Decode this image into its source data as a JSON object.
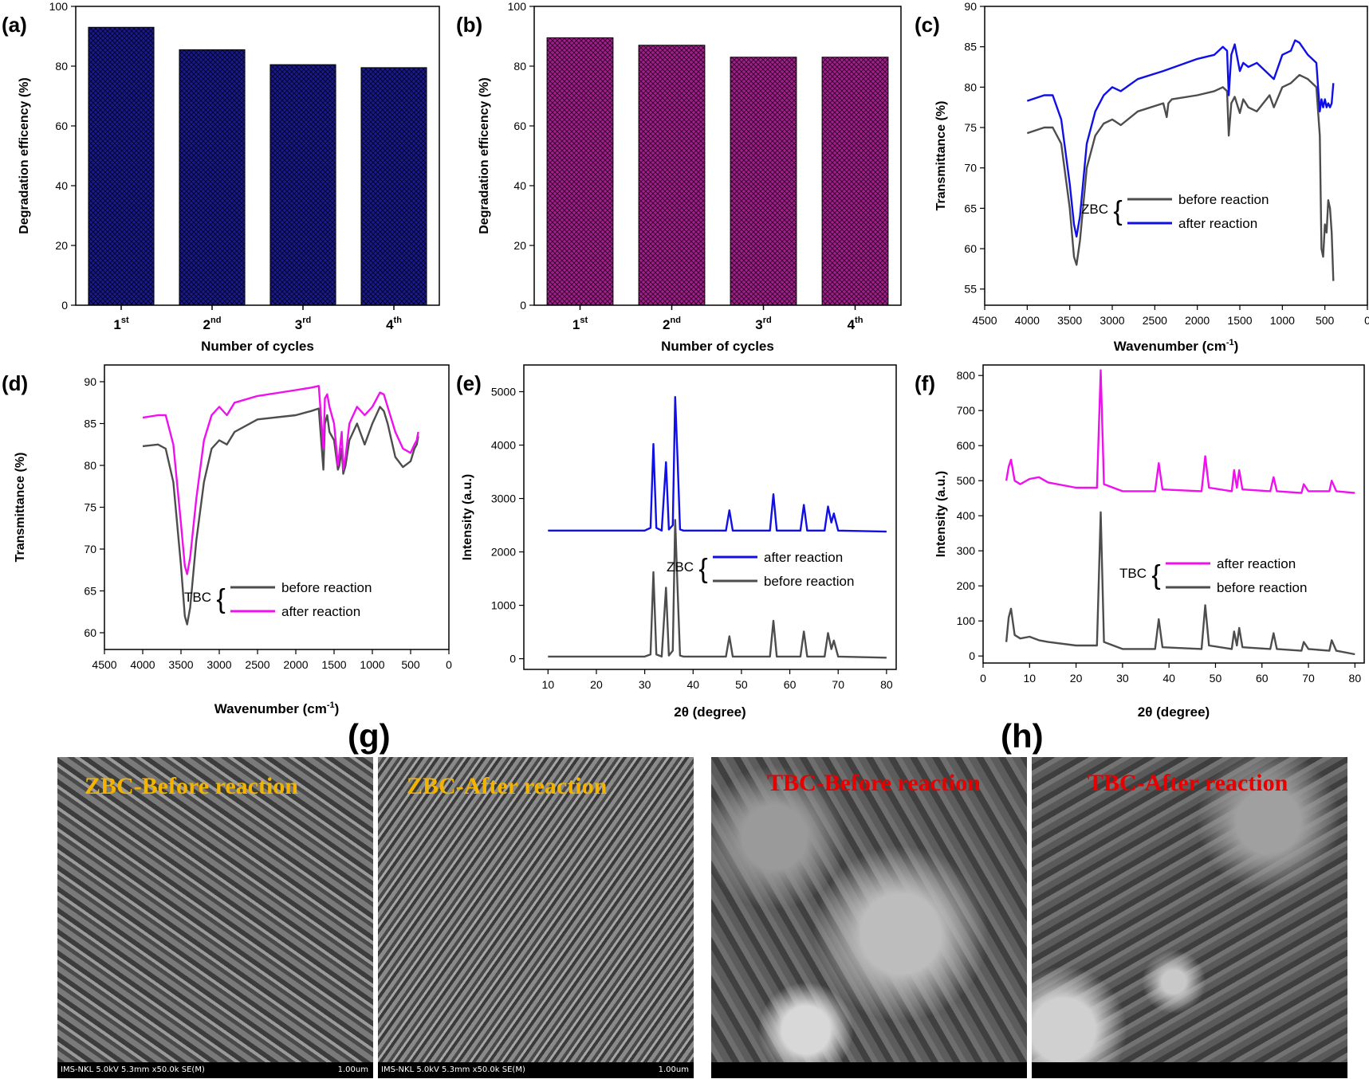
{
  "chart_data": [
    {
      "id": "a",
      "type": "bar",
      "panel_label": "(a)",
      "categories": [
        "1st",
        "2nd",
        "3rd",
        "4th"
      ],
      "values": [
        93,
        85.5,
        80.5,
        79.5
      ],
      "xlabel": "Number of cycles",
      "ylabel": "Degradation efficency (%)",
      "ylim": [
        0,
        100
      ],
      "yticks": [
        0,
        20,
        40,
        60,
        80,
        100
      ],
      "bar_color": "#1a1a8c",
      "pattern": "crosshatch"
    },
    {
      "id": "b",
      "type": "bar",
      "panel_label": "(b)",
      "categories": [
        "1st",
        "2nd",
        "3rd",
        "4th"
      ],
      "values": [
        89.5,
        87,
        83,
        83
      ],
      "xlabel": "Number of cycles",
      "ylabel": "Degradation efficency (%)",
      "ylim": [
        0,
        100
      ],
      "yticks": [
        0,
        20,
        40,
        60,
        80,
        100
      ],
      "bar_color": "#8c1a7a",
      "pattern": "crosshatch"
    },
    {
      "id": "c",
      "type": "line",
      "panel_label": "(c)",
      "xlabel": "Wavenumber (cm⁻¹)",
      "ylabel": "Transmittance (%)",
      "xlim": [
        4500,
        0
      ],
      "ylim": [
        53,
        90
      ],
      "xticks": [
        4500,
        4000,
        3500,
        3000,
        2500,
        2000,
        1500,
        1000,
        500,
        0
      ],
      "yticks": [
        55,
        60,
        65,
        70,
        75,
        80,
        85,
        90
      ],
      "legend": {
        "group": "ZBC",
        "position": "center-right"
      },
      "series": [
        {
          "name": "before reaction",
          "color": "#4d4d4d",
          "x": [
            4000,
            3800,
            3700,
            3600,
            3500,
            3450,
            3420,
            3380,
            3300,
            3200,
            3100,
            3000,
            2900,
            2700,
            2400,
            2360,
            2340,
            2300,
            2000,
            1800,
            1700,
            1650,
            1630,
            1600,
            1560,
            1500,
            1460,
            1400,
            1300,
            1150,
            1100,
            1000,
            900,
            800,
            700,
            600,
            560,
            540,
            520,
            500,
            480,
            460,
            440,
            420,
            400
          ],
          "y": [
            74.3,
            75,
            75,
            73,
            65,
            59,
            58,
            61,
            70,
            74,
            75.5,
            76,
            75.3,
            77,
            78,
            76.3,
            78,
            78.5,
            79,
            79.5,
            80,
            79.5,
            74,
            78,
            78.8,
            76.8,
            78.5,
            77.5,
            77,
            79,
            77.5,
            80,
            80.5,
            81.5,
            81,
            80,
            74,
            60,
            59,
            63,
            62,
            66,
            65,
            62,
            56
          ]
        },
        {
          "name": "after reaction",
          "color": "#1010e6",
          "x": [
            4000,
            3800,
            3700,
            3600,
            3500,
            3450,
            3420,
            3380,
            3300,
            3200,
            3100,
            3000,
            2900,
            2700,
            2400,
            2000,
            1800,
            1700,
            1650,
            1630,
            1600,
            1560,
            1500,
            1460,
            1400,
            1300,
            1150,
            1100,
            1000,
            900,
            850,
            800,
            700,
            600,
            560,
            540,
            520,
            500,
            480,
            460,
            440,
            420,
            400
          ],
          "y": [
            78.3,
            79,
            79,
            76,
            68,
            63,
            61.5,
            64,
            73,
            77,
            79,
            80,
            79.5,
            81,
            82,
            83.5,
            84,
            85,
            84.5,
            79,
            84,
            85.3,
            82,
            83,
            82.5,
            83,
            81.5,
            81,
            84,
            84.5,
            85.8,
            85.5,
            84,
            83,
            77,
            78.5,
            77.5,
            78.5,
            77.5,
            78,
            77.5,
            78,
            80.5
          ]
        }
      ]
    },
    {
      "id": "d",
      "type": "line",
      "panel_label": "(d)",
      "xlabel": "Wavenumber (cm⁻¹)",
      "ylabel": "Transmittance (%)",
      "xlim": [
        4500,
        0
      ],
      "ylim": [
        58,
        92
      ],
      "xticks": [
        4500,
        4000,
        3500,
        3000,
        2500,
        2000,
        1500,
        1000,
        500,
        0
      ],
      "yticks": [
        60,
        65,
        70,
        75,
        80,
        85,
        90
      ],
      "legend": {
        "group": "TBC",
        "position": "bottom-center"
      },
      "series": [
        {
          "name": "before reaction",
          "color": "#4d4d4d",
          "x": [
            4000,
            3800,
            3700,
            3600,
            3500,
            3450,
            3420,
            3380,
            3300,
            3200,
            3100,
            3000,
            2900,
            2800,
            2500,
            2000,
            1800,
            1700,
            1640,
            1620,
            1590,
            1560,
            1500,
            1450,
            1430,
            1400,
            1380,
            1350,
            1300,
            1200,
            1100,
            1000,
            900,
            850,
            800,
            700,
            600,
            500,
            450,
            420,
            400
          ],
          "y": [
            82.3,
            82.5,
            82,
            78,
            68,
            62,
            61,
            63,
            71,
            78,
            82,
            83,
            82.5,
            84,
            85.5,
            86,
            86.5,
            86.8,
            79.5,
            85,
            86,
            84,
            83,
            79.5,
            80,
            82,
            79,
            80,
            83,
            85,
            82.5,
            85,
            87,
            86.5,
            85,
            81,
            79.8,
            80.5,
            82,
            82.5,
            83.5
          ]
        },
        {
          "name": "after reaction",
          "color": "#ee10ee",
          "x": [
            4000,
            3800,
            3700,
            3600,
            3500,
            3450,
            3420,
            3380,
            3300,
            3200,
            3100,
            3000,
            2900,
            2800,
            2500,
            2000,
            1800,
            1700,
            1640,
            1620,
            1590,
            1560,
            1500,
            1450,
            1430,
            1400,
            1380,
            1350,
            1300,
            1200,
            1100,
            1000,
            900,
            850,
            800,
            700,
            600,
            500,
            450,
            420,
            400
          ],
          "y": [
            85.7,
            86,
            86,
            82.5,
            73,
            68,
            67,
            69,
            76,
            83,
            86,
            87,
            86,
            87.5,
            88.3,
            89,
            89.3,
            89.5,
            82,
            88,
            88.5,
            87,
            85,
            80,
            81.5,
            84,
            79.5,
            81,
            85,
            87,
            86,
            87,
            88.7,
            88.5,
            87,
            84,
            82,
            81.5,
            82.5,
            83,
            84
          ]
        }
      ]
    },
    {
      "id": "e",
      "type": "line",
      "panel_label": "(e)",
      "xlabel": "2θ (degree)",
      "ylabel": "Intensity (a.u.)",
      "xlim": [
        5,
        82
      ],
      "ylim": [
        -200,
        5500
      ],
      "xticks": [
        10,
        20,
        30,
        40,
        50,
        60,
        70,
        80
      ],
      "yticks": [
        0,
        1000,
        2000,
        3000,
        4000,
        5000
      ],
      "legend": {
        "group": "ZBC",
        "position": "center-right"
      },
      "series": [
        {
          "name": "after reaction",
          "color": "#1010e6",
          "x": [
            10,
            20,
            30,
            31.2,
            31.8,
            32.4,
            33.5,
            34.4,
            35,
            35.8,
            36.3,
            36.8,
            37.3,
            38,
            46.8,
            47.5,
            48.2,
            55.9,
            56.6,
            57.3,
            62.2,
            62.9,
            63.6,
            67.2,
            67.9,
            68.6,
            69.1,
            70,
            80
          ],
          "y": [
            2400,
            2400,
            2400,
            2450,
            4020,
            2450,
            2400,
            3680,
            2420,
            2500,
            4900,
            3700,
            2420,
            2400,
            2400,
            2780,
            2400,
            2400,
            3080,
            2400,
            2400,
            2880,
            2400,
            2400,
            2850,
            2550,
            2720,
            2400,
            2380
          ]
        },
        {
          "name": "before reaction",
          "color": "#4d4d4d",
          "x": [
            10,
            20,
            30,
            31.2,
            31.8,
            32.4,
            33.5,
            34.4,
            35,
            35.8,
            36.3,
            36.8,
            37.3,
            38,
            46.8,
            47.5,
            48.2,
            55.9,
            56.6,
            57.3,
            62.2,
            62.9,
            63.6,
            67.2,
            67.9,
            68.6,
            69.1,
            70,
            80
          ],
          "y": [
            40,
            40,
            40,
            80,
            1620,
            80,
            40,
            1330,
            60,
            150,
            2600,
            1270,
            60,
            40,
            40,
            420,
            40,
            40,
            710,
            40,
            40,
            510,
            40,
            40,
            480,
            180,
            340,
            40,
            20
          ]
        }
      ]
    },
    {
      "id": "f",
      "type": "line",
      "panel_label": "(f)",
      "xlabel": "2θ (degree)",
      "ylabel": "Intensity (a.u.)",
      "xlim": [
        0,
        82
      ],
      "ylim": [
        -20,
        830
      ],
      "xticks": [
        0,
        10,
        20,
        30,
        40,
        50,
        60,
        70,
        80
      ],
      "yticks": [
        0,
        100,
        200,
        300,
        400,
        500,
        600,
        700,
        800
      ],
      "legend": {
        "group": "TBC",
        "position": "center-right"
      },
      "series": [
        {
          "name": "after reaction",
          "color": "#ee10ee",
          "x": [
            5,
            5.5,
            6,
            6.8,
            8,
            10,
            12,
            14,
            20,
            24.5,
            25.3,
            26,
            30,
            37,
            37.8,
            38.6,
            47,
            47.8,
            48.6,
            53.5,
            54,
            54.6,
            55.1,
            55.8,
            61.8,
            62.5,
            63.2,
            68.5,
            69,
            70,
            74.5,
            75,
            76,
            80
          ],
          "y": [
            500,
            540,
            560,
            500,
            490,
            505,
            510,
            495,
            480,
            480,
            815,
            490,
            470,
            470,
            550,
            475,
            470,
            570,
            480,
            470,
            530,
            480,
            530,
            475,
            470,
            510,
            470,
            465,
            490,
            470,
            470,
            500,
            470,
            465
          ]
        },
        {
          "name": "before reaction",
          "color": "#4d4d4d",
          "x": [
            5,
            5.5,
            6,
            6.8,
            8,
            10,
            12,
            14,
            20,
            24.5,
            25.3,
            26,
            30,
            37,
            37.8,
            38.6,
            47,
            47.8,
            48.6,
            53.5,
            54,
            54.6,
            55.1,
            55.8,
            61.8,
            62.5,
            63.2,
            68.5,
            69,
            70,
            74.5,
            75,
            76,
            80
          ],
          "y": [
            40,
            110,
            135,
            60,
            50,
            55,
            45,
            40,
            30,
            30,
            410,
            40,
            20,
            20,
            105,
            25,
            20,
            145,
            30,
            20,
            70,
            30,
            80,
            25,
            20,
            65,
            20,
            15,
            40,
            20,
            15,
            45,
            15,
            5
          ]
        }
      ]
    }
  ],
  "sem_panels": {
    "g": {
      "label": "(g)",
      "left": {
        "title": "ZBC-Before reaction",
        "title_color": "#f2b400",
        "footer_left": "IMS-NKL 5.0kV 5.3mm x50.0k SE(M)",
        "footer_right": "1.00um"
      },
      "right": {
        "title": "ZBC-After reaction",
        "title_color": "#f2b400",
        "footer_left": "IMS-NKL 5.0kV 5.3mm x50.0k SE(M)",
        "footer_right": "1.00um"
      }
    },
    "h": {
      "label": "(h)",
      "left": {
        "title": "TBC-Before reaction",
        "title_color": "#e60000"
      },
      "right": {
        "title": "TBC-After reaction",
        "title_color": "#e60000"
      }
    }
  }
}
